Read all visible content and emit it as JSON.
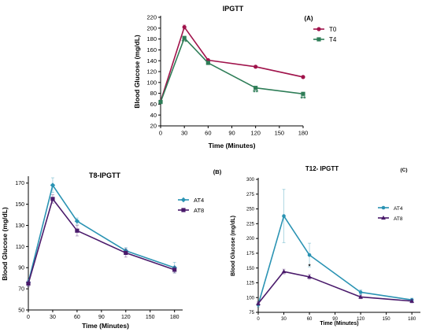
{
  "chart_data": [
    {
      "type": "line",
      "panel_label": "(A)",
      "title": "IPGTT",
      "xlabel": "Time (Minutes)",
      "ylabel": "Blood Glucose  (mg/dL)",
      "x": [
        0,
        30,
        60,
        120,
        180
      ],
      "x_ticks": [
        "0",
        "30",
        "60",
        "90",
        "120",
        "150",
        "180"
      ],
      "y_ticks": [
        "20",
        "40",
        "60",
        "80",
        "100",
        "120",
        "140",
        "160",
        "180",
        "200",
        "220"
      ],
      "xlim": [
        0,
        180
      ],
      "ylim": [
        20,
        220
      ],
      "legend_position": "right",
      "series": [
        {
          "name": "T0",
          "color": "#a0134b",
          "marker": "circle",
          "values": [
            65,
            202,
            141,
            129,
            110
          ],
          "errors": [
            2,
            4,
            2,
            2,
            2
          ]
        },
        {
          "name": "T4",
          "color": "#2e7d57",
          "marker": "square",
          "values": [
            64,
            182,
            136,
            90,
            79
          ],
          "errors": [
            2,
            3,
            2,
            2,
            2
          ]
        }
      ],
      "annotations": [
        {
          "text": "**",
          "x": 30,
          "y": 170,
          "color": "#2e7d57"
        },
        {
          "text": "**",
          "x": 120,
          "y": 77,
          "color": "#2e7d57"
        },
        {
          "text": "**",
          "x": 180,
          "y": 66,
          "color": "#2e7d57"
        }
      ]
    },
    {
      "type": "line",
      "panel_label": "(B)",
      "title": "T8-IPGTT",
      "xlabel": "Time (Minutes)",
      "ylabel": "Blood Glucose  (mg/dL)",
      "x": [
        0,
        30,
        60,
        120,
        180
      ],
      "x_ticks": [
        "0",
        "30",
        "60",
        "90",
        "120",
        "150",
        "180"
      ],
      "y_ticks": [
        "50",
        "70",
        "90",
        "110",
        "130",
        "150",
        "170"
      ],
      "xlim": [
        0,
        190
      ],
      "ylim": [
        50,
        175
      ],
      "legend_position": "right",
      "series": [
        {
          "name": "AT4",
          "color": "#2a93b3",
          "marker": "diamond",
          "values": [
            76,
            168,
            134,
            106,
            90
          ],
          "errors": [
            3,
            7,
            3,
            3,
            5
          ]
        },
        {
          "name": "AT8",
          "color": "#4a1a6b",
          "marker": "square",
          "values": [
            75,
            155,
            125,
            104,
            88
          ],
          "errors": [
            3,
            4,
            5,
            4,
            3
          ]
        }
      ],
      "annotations": []
    },
    {
      "type": "line",
      "panel_label": "(C)",
      "title": "T12- IPGTT",
      "xlabel": "Time (Minutes)",
      "ylabel": "Blood Glucose  (mg/dL)",
      "x": [
        0,
        30,
        60,
        120,
        180
      ],
      "x_ticks": [
        "0",
        "30",
        "60",
        "90",
        "120",
        "150",
        "180"
      ],
      "y_ticks": [
        "75",
        "100",
        "125",
        "150",
        "175",
        "200",
        "225",
        "250",
        "275",
        "300"
      ],
      "xlim": [
        0,
        190
      ],
      "ylim": [
        75,
        300
      ],
      "legend_position": "right",
      "series": [
        {
          "name": "AT4",
          "color": "#2a93b3",
          "marker": "circle",
          "values": [
            88,
            238,
            172,
            109,
            96
          ],
          "errors": [
            4,
            45,
            20,
            4,
            3
          ]
        },
        {
          "name": "AT8",
          "color": "#4a1a6b",
          "marker": "triangle",
          "values": [
            90,
            144,
            135,
            101,
            94
          ],
          "errors": [
            3,
            4,
            4,
            3,
            3
          ]
        }
      ],
      "annotations": [
        {
          "text": "*",
          "x": 60,
          "y": 150,
          "color": "#000000"
        }
      ]
    }
  ]
}
